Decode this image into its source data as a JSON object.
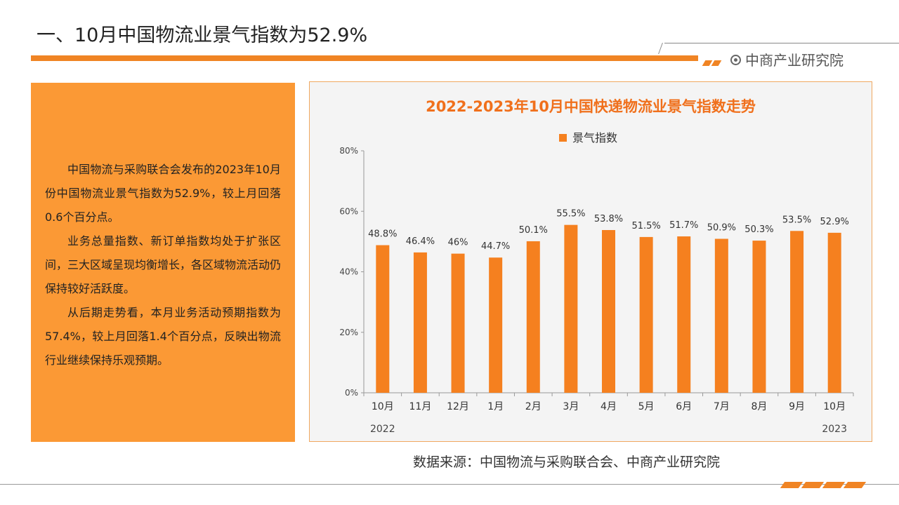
{
  "page": {
    "title": "一、10月中国物流业景气指数为52.9%",
    "brand": "中商产业研究院",
    "source": "数据来源：中国物流与采购联合会、中商产业研究院",
    "accent_color": "#f08424",
    "text_panel_color": "#fb9935"
  },
  "text_panel": {
    "paragraphs": [
      "中国物流与采购联合会发布的2023年10月份中国物流业景气指数为52.9%，较上月回落0.6个百分点。",
      "业务总量指数、新订单指数均处于扩张区间，三大区域呈现均衡增长，各区域物流活动仍保持较好活跃度。",
      "从后期走势看，本月业务活动预期指数为57.4%，较上月回落1.4个百分点，反映出物流行业继续保持乐观预期。"
    ]
  },
  "chart_data": {
    "type": "bar",
    "title": "2022-2023年10月中国快递物流业景气指数走势",
    "categories": [
      "10月",
      "11月",
      "12月",
      "1月",
      "2月",
      "3月",
      "4月",
      "5月",
      "6月",
      "7月",
      "8月",
      "9月",
      "10月"
    ],
    "series": [
      {
        "name": "景气指数",
        "values": [
          48.8,
          46.4,
          46,
          44.7,
          50.1,
          55.5,
          53.8,
          51.5,
          51.7,
          50.9,
          50.3,
          53.5,
          52.9
        ],
        "labels": [
          "48.8%",
          "46.4%",
          "46%",
          "44.7%",
          "50.1%",
          "55.5%",
          "53.8%",
          "51.5%",
          "51.7%",
          "50.9%",
          "50.3%",
          "53.5%",
          "52.9%"
        ],
        "color": "#f5801f"
      }
    ],
    "y_ticks": [
      "0%",
      "20%",
      "40%",
      "60%",
      "80%"
    ],
    "ylim": [
      0,
      80
    ],
    "year_labels": [
      "2022",
      "2023"
    ],
    "legend_position": "top-center",
    "grid": false,
    "title_color": "#f0701c"
  }
}
